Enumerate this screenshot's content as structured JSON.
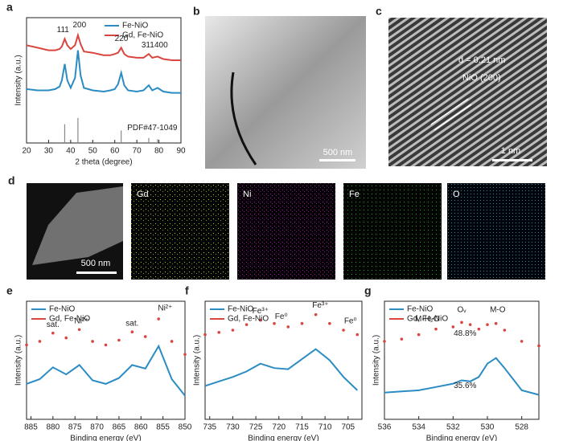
{
  "chart_data": [
    {
      "type": "line",
      "panel": "a",
      "xlabel": "2 theta (degree)",
      "ylabel": "Intensity (a.u.)",
      "x": [
        20,
        25,
        30,
        33,
        35,
        36,
        37.3,
        38.5,
        40,
        42,
        43.3,
        44.5,
        46,
        50,
        55,
        58,
        60,
        61.5,
        62.9,
        64.3,
        66,
        70,
        73,
        75.4,
        77,
        79.4,
        82,
        86,
        90
      ],
      "xlim": [
        20,
        90
      ],
      "xticks": [
        20,
        30,
        40,
        50,
        60,
        70,
        80,
        90
      ],
      "ylim": [
        0,
        10
      ],
      "legend": "upper right",
      "series": [
        {
          "name": "Fe-NiO",
          "color": "#2b8cc4",
          "marker": false,
          "values": [
            4.3,
            4.2,
            4.2,
            4.3,
            4.5,
            5.0,
            6.3,
            5.0,
            4.4,
            5.2,
            7.4,
            5.4,
            4.4,
            4.2,
            4.1,
            4.2,
            4.3,
            4.7,
            5.6,
            4.6,
            4.2,
            4.1,
            4.2,
            4.6,
            4.2,
            4.4,
            4.1,
            4.0,
            4.0
          ]
        },
        {
          "name": "Gd, Fe-NiO",
          "color": "#d9453f",
          "marker": false,
          "values": [
            7.8,
            7.6,
            7.4,
            7.4,
            7.5,
            7.7,
            8.3,
            7.8,
            7.5,
            7.8,
            8.6,
            7.9,
            7.3,
            7.2,
            7.0,
            7.0,
            7.1,
            7.2,
            7.6,
            7.1,
            6.9,
            6.8,
            6.8,
            7.1,
            6.8,
            6.9,
            6.7,
            6.6,
            6.6
          ]
        }
      ],
      "reference": {
        "color": "#888888",
        "x": [
          37.3,
          43.3,
          62.9,
          75.4,
          79.4
        ],
        "values": [
          1.5,
          2.0,
          1.0,
          0.4,
          0.3
        ]
      },
      "annotations": [
        {
          "text": "111",
          "x": 36.5,
          "y": 9.0
        },
        {
          "text": "200",
          "x": 44,
          "y": 9.4
        },
        {
          "text": "220",
          "x": 63,
          "y": 8.3
        },
        {
          "text": "311",
          "x": 75,
          "y": 7.8
        },
        {
          "text": "400",
          "x": 81,
          "y": 7.8
        },
        {
          "text": "PDF#47-1049",
          "x": 77,
          "y": 1.2
        }
      ]
    },
    {
      "type": "line",
      "panel": "e",
      "xlabel": "Binding energy (eV)",
      "ylabel": "Intensity (a.u.)",
      "x": [
        886,
        883,
        880,
        877,
        874,
        871,
        868,
        865,
        862,
        859,
        856,
        853,
        850
      ],
      "xlim": [
        886,
        850
      ],
      "xticks": [
        885,
        880,
        875,
        870,
        865,
        860,
        855,
        850
      ],
      "ylim": [
        0,
        10
      ],
      "legend": "upper left",
      "series": [
        {
          "name": "Fe-NiO",
          "color": "#2b8cc4",
          "marker": false,
          "values": [
            3.0,
            3.4,
            4.4,
            3.8,
            4.6,
            3.3,
            3.0,
            3.5,
            4.6,
            4.3,
            6.2,
            3.4,
            2.0
          ]
        },
        {
          "name": "Gd, Fe-NiO",
          "color": "#d9453f",
          "marker": true,
          "values": [
            6.3,
            6.6,
            7.3,
            6.9,
            7.6,
            6.6,
            6.3,
            6.7,
            7.4,
            7.0,
            8.5,
            6.6,
            5.5
          ]
        }
      ],
      "annotations": [
        {
          "text": "sat.",
          "x": 880,
          "y": 8.0
        },
        {
          "text": "Ni²⁺",
          "x": 873.5,
          "y": 8.3
        },
        {
          "text": "sat.",
          "x": 862,
          "y": 8.1
        },
        {
          "text": "Ni²⁺",
          "x": 854.5,
          "y": 9.4
        }
      ]
    },
    {
      "type": "line",
      "panel": "f",
      "xlabel": "Binding energy (eV)",
      "ylabel": "Intensity (a.u.)",
      "x": [
        736,
        733,
        730,
        727,
        724,
        721,
        718,
        715,
        712,
        709,
        706,
        703
      ],
      "xlim": [
        736,
        702
      ],
      "xticks": [
        735,
        730,
        725,
        720,
        715,
        710,
        705
      ],
      "ylim": [
        0,
        10.6
      ],
      "legend": "upper left",
      "series": [
        {
          "name": "Fe-NiO",
          "color": "#2b8cc4",
          "marker": false,
          "values": [
            3.0,
            3.4,
            3.8,
            4.3,
            5.0,
            4.6,
            4.5,
            5.4,
            6.3,
            5.3,
            3.8,
            2.6
          ]
        },
        {
          "name": "Gd, Fe-NiO",
          "color": "#d9453f",
          "marker": true,
          "values": [
            7.6,
            7.8,
            8.0,
            8.5,
            8.9,
            8.6,
            8.3,
            8.6,
            9.4,
            8.6,
            8.0,
            7.6
          ]
        }
      ],
      "annotations": [
        {
          "text": "Fe³⁺",
          "x": 724,
          "y": 9.7
        },
        {
          "text": "Fe⁰",
          "x": 719.5,
          "y": 9.2
        },
        {
          "text": "Fe³⁺",
          "x": 711,
          "y": 10.2
        },
        {
          "text": "Fe⁰",
          "x": 704.5,
          "y": 8.8
        }
      ]
    },
    {
      "type": "line",
      "panel": "g",
      "xlabel": "Binding energy (eV)",
      "ylabel": "Intensity (a.u.)",
      "x": [
        536,
        535,
        534,
        533,
        532,
        531.5,
        531,
        530.5,
        530,
        529.5,
        529,
        528,
        527
      ],
      "xlim": [
        536,
        527
      ],
      "xticks": [
        536,
        534,
        532,
        530,
        528
      ],
      "ylim": [
        0,
        10.6
      ],
      "legend": "upper left",
      "series": [
        {
          "name": "Fe-NiO",
          "color": "#2b8cc4",
          "marker": false,
          "values": [
            2.4,
            2.5,
            2.6,
            2.9,
            3.2,
            3.5,
            3.4,
            3.8,
            5.0,
            5.5,
            4.6,
            2.6,
            2.2
          ]
        },
        {
          "name": "Gd, Fe-NiO",
          "color": "#d9453f",
          "marker": true,
          "values": [
            7.0,
            7.2,
            7.6,
            8.1,
            8.3,
            8.7,
            8.5,
            8.1,
            8.5,
            8.6,
            8.0,
            7.0,
            6.6
          ]
        }
      ],
      "annotations": [
        {
          "text": "M-H₂O",
          "x": 533.5,
          "y": 9.0
        },
        {
          "text": "Oᵥ",
          "x": 531.5,
          "y": 9.8
        },
        {
          "text": "M-O",
          "x": 529.4,
          "y": 9.8
        },
        {
          "text": "48.8%",
          "x": 531.3,
          "y": 7.7
        },
        {
          "text": "35.6%",
          "x": 531.3,
          "y": 3.0
        }
      ]
    }
  ],
  "images": {
    "b": {
      "panel": "b",
      "scale": "500 nm"
    },
    "c": {
      "panel": "c",
      "spacing": "d = 0.21 nm",
      "plane": "NiO (200)",
      "scale": "1 nm"
    },
    "d": {
      "panel": "d",
      "scale": "500 nm",
      "maps": [
        "Gd",
        "Ni",
        "Fe",
        "O"
      ]
    }
  }
}
